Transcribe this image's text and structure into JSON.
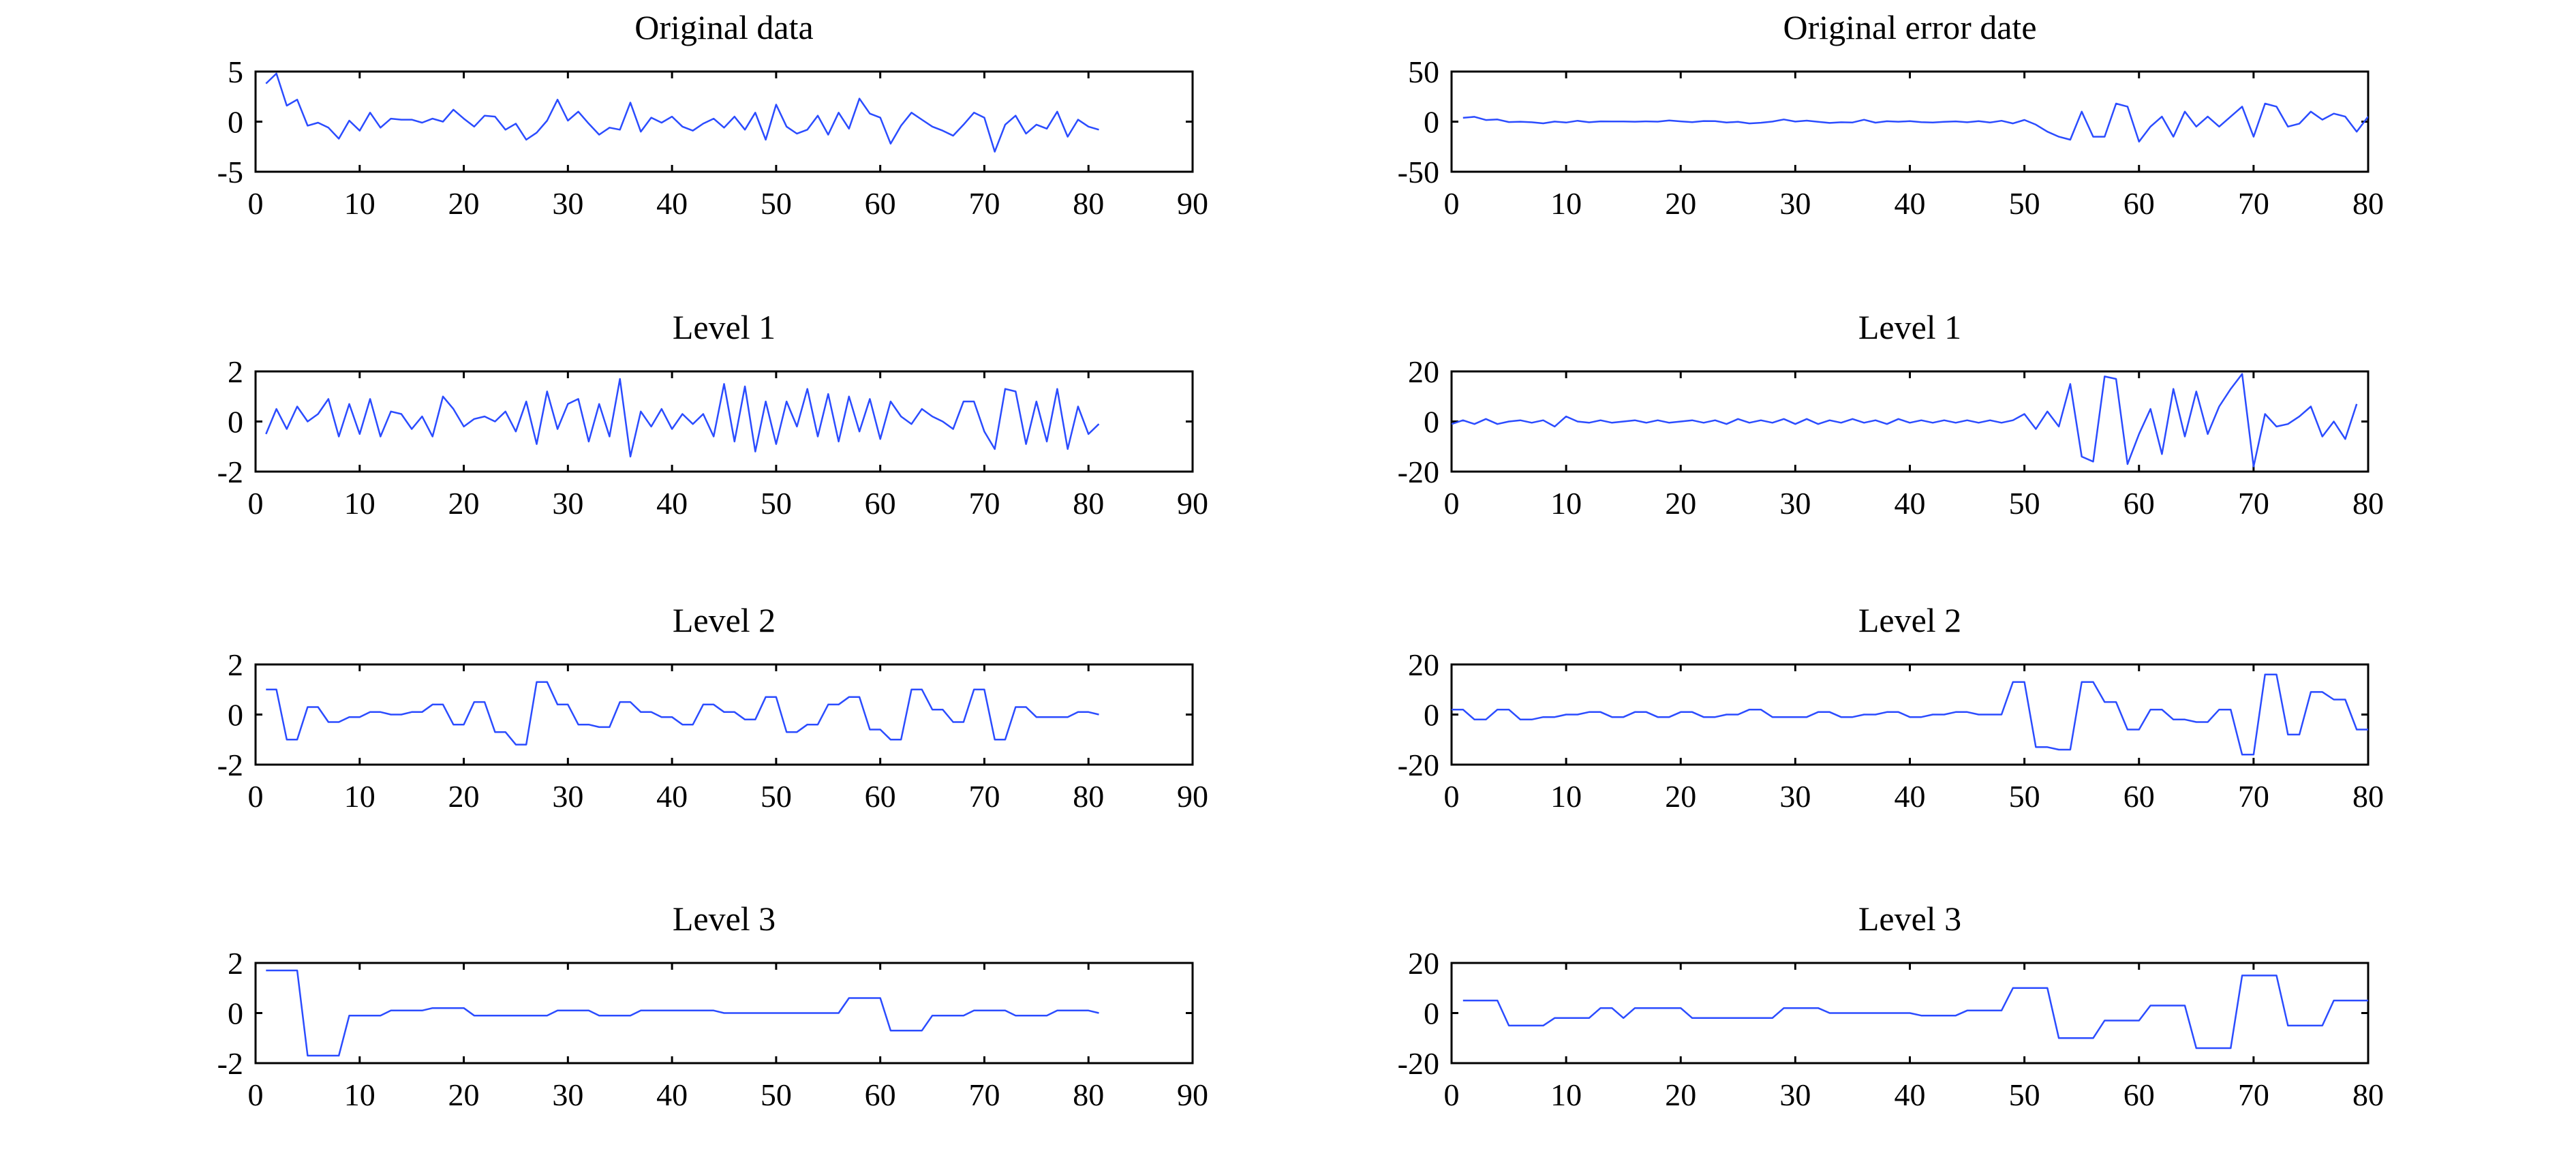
{
  "chart_data": [
    {
      "type": "line",
      "title": "Original data",
      "xlabel": "",
      "ylabel": "",
      "xlim": [
        0,
        90
      ],
      "ylim": [
        -5,
        5
      ],
      "xticks": [
        0,
        10,
        20,
        30,
        40,
        50,
        60,
        70,
        80,
        90
      ],
      "yticks": [
        -5,
        0,
        5
      ],
      "color": "#2b4cff",
      "series": [
        {
          "name": "Original data",
          "x_start": 1,
          "x_step": 1,
          "values": [
            3.8,
            4.8,
            1.6,
            2.2,
            -0.4,
            -0.1,
            -0.6,
            -1.7,
            0.1,
            -0.9,
            0.9,
            -0.6,
            0.3,
            0.2,
            0.2,
            -0.1,
            0.3,
            0.0,
            1.2,
            0.3,
            -0.5,
            0.6,
            0.5,
            -0.8,
            -0.2,
            -1.8,
            -1.1,
            0.1,
            2.2,
            0.1,
            1.0,
            -0.2,
            -1.3,
            -0.6,
            -0.8,
            1.9,
            -1.0,
            0.4,
            -0.1,
            0.5,
            -0.5,
            -0.9,
            -0.2,
            0.3,
            -0.6,
            0.5,
            -0.8,
            0.9,
            -1.8,
            1.7,
            -0.5,
            -1.2,
            -0.8,
            0.6,
            -1.3,
            0.9,
            -0.7,
            2.3,
            0.8,
            0.4,
            -2.2,
            -0.4,
            0.9,
            0.2,
            -0.5,
            -0.9,
            -1.4,
            -0.3,
            0.9,
            0.4,
            -3.0,
            -0.3,
            0.6,
            -1.2,
            -0.3,
            -0.7,
            1.0,
            -1.5,
            0.2,
            -0.5,
            -0.8
          ]
        }
      ]
    },
    {
      "type": "line",
      "title": "Original error date",
      "xlabel": "",
      "ylabel": "",
      "xlim": [
        0,
        80
      ],
      "ylim": [
        -50,
        50
      ],
      "xticks": [
        0,
        10,
        20,
        30,
        40,
        50,
        60,
        70,
        80
      ],
      "yticks": [
        -50,
        0,
        50
      ],
      "color": "#2b4cff",
      "series": [
        {
          "name": "Original error date",
          "x_start": 1,
          "x_step": 1,
          "values": [
            3.8,
            4.8,
            1.6,
            2.2,
            -0.4,
            -0.1,
            -0.6,
            -1.7,
            0.1,
            -0.9,
            0.9,
            -0.6,
            0.3,
            0.2,
            0.2,
            -0.1,
            0.3,
            0.0,
            1.2,
            0.3,
            -0.5,
            0.6,
            0.5,
            -0.8,
            -0.2,
            -1.8,
            -1.1,
            0.1,
            2.2,
            0.1,
            1.0,
            -0.2,
            -1.3,
            -0.6,
            -0.8,
            1.9,
            -1.0,
            0.4,
            -0.1,
            0.5,
            -0.5,
            -0.9,
            -0.2,
            0.3,
            -0.6,
            0.5,
            -0.8,
            0.9,
            -1.8,
            1.7,
            -3,
            -10,
            -15,
            -18,
            10,
            -15,
            -15,
            18,
            15,
            -20,
            -5,
            5,
            -15,
            10,
            -5,
            5,
            -5,
            5,
            15,
            -15,
            18,
            15,
            -5,
            -2,
            10,
            2,
            8,
            5,
            -10,
            5
          ]
        }
      ]
    },
    {
      "type": "line",
      "title": "Level 1",
      "xlabel": "",
      "ylabel": "",
      "xlim": [
        0,
        90
      ],
      "ylim": [
        -2,
        2
      ],
      "xticks": [
        0,
        10,
        20,
        30,
        40,
        50,
        60,
        70,
        80,
        90
      ],
      "yticks": [
        -2,
        0,
        2
      ],
      "color": "#2b4cff",
      "series": [
        {
          "name": "Level 1",
          "x_start": 1,
          "x_step": 1,
          "values": [
            -0.5,
            0.5,
            -0.3,
            0.6,
            0.0,
            0.3,
            0.9,
            -0.6,
            0.7,
            -0.5,
            0.9,
            -0.6,
            0.4,
            0.3,
            -0.3,
            0.2,
            -0.6,
            1.0,
            0.5,
            -0.2,
            0.1,
            0.2,
            0.0,
            0.4,
            -0.4,
            0.8,
            -0.9,
            1.2,
            -0.3,
            0.7,
            0.9,
            -0.8,
            0.7,
            -0.6,
            1.7,
            -1.4,
            0.4,
            -0.2,
            0.5,
            -0.3,
            0.3,
            -0.1,
            0.3,
            -0.6,
            1.5,
            -0.8,
            1.4,
            -1.2,
            0.8,
            -0.9,
            0.8,
            -0.2,
            1.3,
            -0.6,
            1.1,
            -0.8,
            1.0,
            -0.4,
            0.9,
            -0.7,
            0.8,
            0.2,
            -0.1,
            0.5,
            0.2,
            0.0,
            -0.3,
            0.8,
            0.8,
            -0.4,
            -1.1,
            1.3,
            1.2,
            -0.9,
            0.8,
            -0.8,
            1.3,
            -1.1,
            0.6,
            -0.5,
            -0.1
          ]
        }
      ]
    },
    {
      "type": "line",
      "title": "Level 1",
      "xlabel": "",
      "ylabel": "",
      "xlim": [
        0,
        80
      ],
      "ylim": [
        -20,
        20
      ],
      "xticks": [
        0,
        10,
        20,
        30,
        40,
        50,
        60,
        70,
        80
      ],
      "yticks": [
        -20,
        0,
        20
      ],
      "color": "#2b4cff",
      "series": [
        {
          "name": "Level 1",
          "x_start": 0,
          "x_step": 1,
          "values": [
            -1,
            0.5,
            -1,
            1,
            -1,
            0,
            0.5,
            -0.5,
            0.5,
            -2,
            2,
            0,
            -0.5,
            0.5,
            -0.5,
            0,
            0.5,
            -0.5,
            0.5,
            -0.5,
            0,
            0.5,
            -0.5,
            0.5,
            -1,
            1,
            -0.5,
            0.5,
            -0.5,
            1,
            -1,
            1,
            -1,
            0.5,
            -0.5,
            1,
            -0.5,
            0.5,
            -1,
            1,
            -0.5,
            0.5,
            -0.5,
            0.5,
            -0.5,
            0.5,
            -0.5,
            0.5,
            -0.5,
            0.5,
            3,
            -3,
            4,
            -2,
            15,
            -14,
            -16,
            18,
            17,
            -17,
            -5,
            5,
            -13,
            13,
            -6,
            12,
            -5,
            6,
            13,
            19,
            -18,
            3,
            -2,
            -1,
            2,
            6,
            -6,
            0,
            -7,
            7
          ]
        }
      ]
    },
    {
      "type": "line",
      "title": "Level 2",
      "xlabel": "",
      "ylabel": "",
      "xlim": [
        0,
        90
      ],
      "ylim": [
        -2,
        2
      ],
      "xticks": [
        0,
        10,
        20,
        30,
        40,
        50,
        60,
        70,
        80,
        90
      ],
      "yticks": [
        -2,
        0,
        2
      ],
      "color": "#2b4cff",
      "series": [
        {
          "name": "Level 2",
          "x_start": 1,
          "x_step": 1,
          "values": [
            1.0,
            1.0,
            -1.0,
            -1.0,
            0.3,
            0.3,
            -0.3,
            -0.3,
            -0.1,
            -0.1,
            0.1,
            0.1,
            0.0,
            0.0,
            0.1,
            0.1,
            0.4,
            0.4,
            -0.4,
            -0.4,
            0.5,
            0.5,
            -0.7,
            -0.7,
            -1.2,
            -1.2,
            1.3,
            1.3,
            0.4,
            0.4,
            -0.4,
            -0.4,
            -0.5,
            -0.5,
            0.5,
            0.5,
            0.1,
            0.1,
            -0.1,
            -0.1,
            -0.4,
            -0.4,
            0.4,
            0.4,
            0.1,
            0.1,
            -0.2,
            -0.2,
            0.7,
            0.7,
            -0.7,
            -0.7,
            -0.4,
            -0.4,
            0.4,
            0.4,
            0.7,
            0.7,
            -0.6,
            -0.6,
            -1.0,
            -1.0,
            1.0,
            1.0,
            0.2,
            0.2,
            -0.3,
            -0.3,
            1.0,
            1.0,
            -1.0,
            -1.0,
            0.3,
            0.3,
            -0.1,
            -0.1,
            -0.1,
            -0.1,
            0.1,
            0.1,
            0.0
          ]
        }
      ]
    },
    {
      "type": "line",
      "title": "Level 2",
      "xlabel": "",
      "ylabel": "",
      "xlim": [
        0,
        80
      ],
      "ylim": [
        -20,
        20
      ],
      "xticks": [
        0,
        10,
        20,
        30,
        40,
        50,
        60,
        70,
        80
      ],
      "yticks": [
        -20,
        0,
        20
      ],
      "color": "#2b4cff",
      "series": [
        {
          "name": "Level 2",
          "x_start": 0,
          "x_step": 1,
          "values": [
            2,
            2,
            -2,
            -2,
            2,
            2,
            -2,
            -2,
            -1,
            -1,
            0,
            0,
            1,
            1,
            -1,
            -1,
            1,
            1,
            -1,
            -1,
            1,
            1,
            -1,
            -1,
            0,
            0,
            2,
            2,
            -1,
            -1,
            -1,
            -1,
            1,
            1,
            -1,
            -1,
            0,
            0,
            1,
            1,
            -1,
            -1,
            0,
            0,
            1,
            1,
            0,
            0,
            0,
            13,
            13,
            -13,
            -13,
            -14,
            -14,
            13,
            13,
            5,
            5,
            -6,
            -6,
            2,
            2,
            -2,
            -2,
            -3,
            -3,
            2,
            2,
            -16,
            -16,
            16,
            16,
            -8,
            -8,
            9,
            9,
            6,
            6,
            -6,
            -6
          ]
        }
      ]
    },
    {
      "type": "line",
      "title": "Level 3",
      "xlabel": "",
      "ylabel": "",
      "xlim": [
        0,
        90
      ],
      "ylim": [
        -2,
        2
      ],
      "xticks": [
        0,
        10,
        20,
        30,
        40,
        50,
        60,
        70,
        80,
        90
      ],
      "yticks": [
        -2,
        0,
        2
      ],
      "color": "#2b4cff",
      "series": [
        {
          "name": "Level 3",
          "x_start": 1,
          "x_step": 1,
          "values": [
            1.7,
            1.7,
            1.7,
            1.7,
            -1.7,
            -1.7,
            -1.7,
            -1.7,
            -0.1,
            -0.1,
            -0.1,
            -0.1,
            0.1,
            0.1,
            0.1,
            0.1,
            0.2,
            0.2,
            0.2,
            0.2,
            -0.1,
            -0.1,
            -0.1,
            -0.1,
            -0.1,
            -0.1,
            -0.1,
            -0.1,
            0.1,
            0.1,
            0.1,
            0.1,
            -0.1,
            -0.1,
            -0.1,
            -0.1,
            0.1,
            0.1,
            0.1,
            0.1,
            0.1,
            0.1,
            0.1,
            0.1,
            0.0,
            0.0,
            0.0,
            0.0,
            0.0,
            0.0,
            0.0,
            0.0,
            0.0,
            0.0,
            0.0,
            0.0,
            0.6,
            0.6,
            0.6,
            0.6,
            -0.7,
            -0.7,
            -0.7,
            -0.7,
            -0.1,
            -0.1,
            -0.1,
            -0.1,
            0.1,
            0.1,
            0.1,
            0.1,
            -0.1,
            -0.1,
            -0.1,
            -0.1,
            0.1,
            0.1,
            0.1,
            0.1,
            0.0
          ]
        }
      ]
    },
    {
      "type": "line",
      "title": "Level 3",
      "xlabel": "",
      "ylabel": "",
      "xlim": [
        0,
        80
      ],
      "ylim": [
        -20,
        20
      ],
      "xticks": [
        0,
        10,
        20,
        30,
        40,
        50,
        60,
        70,
        80
      ],
      "yticks": [
        -20,
        0,
        20
      ],
      "color": "#2b4cff",
      "series": [
        {
          "name": "Level 3",
          "x_start": 1,
          "x_step": 1,
          "values": [
            5,
            5,
            5,
            5,
            -5,
            -5,
            -5,
            -5,
            -2,
            -2,
            -2,
            -2,
            2,
            2,
            -2,
            2,
            2,
            2,
            2,
            2,
            -2,
            -2,
            -2,
            -2,
            -2,
            -2,
            -2,
            -2,
            2,
            2,
            2,
            2,
            0,
            0,
            0,
            0,
            0,
            0,
            0,
            0,
            -1,
            -1,
            -1,
            -1,
            1,
            1,
            1,
            1,
            10,
            10,
            10,
            10,
            -10,
            -10,
            -10,
            -10,
            -3,
            -3,
            -3,
            -3,
            3,
            3,
            3,
            3,
            -14,
            -14,
            -14,
            -14,
            15,
            15,
            15,
            15,
            -5,
            -5,
            -5,
            -5,
            5,
            5,
            5,
            5
          ]
        }
      ]
    }
  ]
}
